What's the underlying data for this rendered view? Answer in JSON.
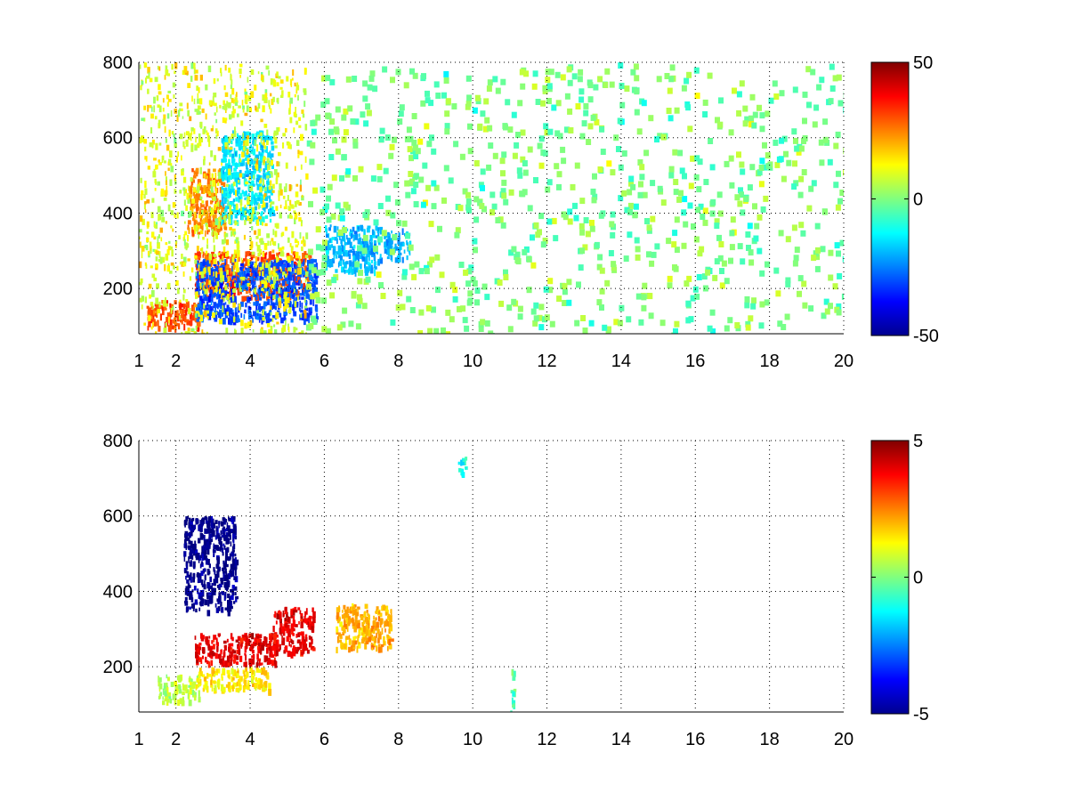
{
  "chart_data": [
    {
      "type": "heatmap",
      "title": "",
      "xlabel": "",
      "ylabel": "",
      "xlim": [
        1,
        20
      ],
      "ylim": [
        80,
        800
      ],
      "grid": true,
      "xticks": [
        1,
        2,
        4,
        6,
        8,
        10,
        12,
        14,
        16,
        18,
        20
      ],
      "xtick_labels": [
        "1",
        "2",
        "4",
        "6",
        "8",
        "10",
        "12",
        "14",
        "16",
        "18",
        "20"
      ],
      "yticks": [
        200,
        400,
        600,
        800
      ],
      "ytick_labels": [
        "200",
        "400",
        "600",
        "800"
      ],
      "colorbar": {
        "range": [
          -50,
          50
        ],
        "ticks": [
          -50,
          0,
          50
        ],
        "tick_labels": [
          "-50",
          "0",
          "50"
        ],
        "colormap": "jet"
      },
      "features": [
        {
          "x": [
            1.2,
            2.6
          ],
          "y": [
            100,
            170
          ],
          "value": 30
        },
        {
          "x": [
            2.3,
            3.3
          ],
          "y": [
            350,
            520
          ],
          "value": 25
        },
        {
          "x": [
            3.2,
            4.6
          ],
          "y": [
            380,
            620
          ],
          "value": -15
        },
        {
          "x": [
            2.5,
            5.6
          ],
          "y": [
            180,
            300
          ],
          "value": 30
        },
        {
          "x": [
            2.5,
            5.8
          ],
          "y": [
            120,
            280
          ],
          "value": -30
        },
        {
          "x": [
            6.0,
            7.5
          ],
          "y": [
            250,
            370
          ],
          "value": -20
        },
        {
          "x": [
            7.6,
            8.3
          ],
          "y": [
            280,
            360
          ],
          "value": -20
        },
        {
          "x": [
            1.0,
            5.5
          ],
          "y": [
            80,
            800
          ],
          "value": 10
        }
      ]
    },
    {
      "type": "heatmap",
      "title": "",
      "xlabel": "",
      "ylabel": "",
      "xlim": [
        1,
        20
      ],
      "ylim": [
        80,
        800
      ],
      "grid": true,
      "xticks": [
        1,
        2,
        4,
        6,
        8,
        10,
        12,
        14,
        16,
        18,
        20
      ],
      "xtick_labels": [
        "1",
        "2",
        "4",
        "6",
        "8",
        "10",
        "12",
        "14",
        "16",
        "18",
        "20"
      ],
      "yticks": [
        200,
        400,
        600,
        800
      ],
      "ytick_labels": [
        "200",
        "400",
        "600",
        "800"
      ],
      "colorbar": {
        "range": [
          -5,
          5
        ],
        "ticks": [
          -5,
          0,
          5
        ],
        "tick_labels": [
          "-5",
          "0",
          "5"
        ],
        "colormap": "jet"
      },
      "features": [
        {
          "x": [
            2.2,
            3.6
          ],
          "y": [
            350,
            600
          ],
          "value": -5
        },
        {
          "x": [
            2.5,
            4.7
          ],
          "y": [
            210,
            290
          ],
          "value": 4
        },
        {
          "x": [
            4.6,
            5.7
          ],
          "y": [
            240,
            360
          ],
          "value": 4
        },
        {
          "x": [
            1.5,
            2.6
          ],
          "y": [
            110,
            180
          ],
          "value": 0.5
        },
        {
          "x": [
            2.5,
            4.5
          ],
          "y": [
            140,
            200
          ],
          "value": 1.5
        },
        {
          "x": [
            6.3,
            7.8
          ],
          "y": [
            250,
            370
          ],
          "value": 2
        },
        {
          "x": [
            11.0,
            11.1
          ],
          "y": [
            80,
            200
          ],
          "value": -0.5
        },
        {
          "x": [
            9.6,
            9.8
          ],
          "y": [
            710,
            760
          ],
          "value": -1
        }
      ]
    }
  ]
}
